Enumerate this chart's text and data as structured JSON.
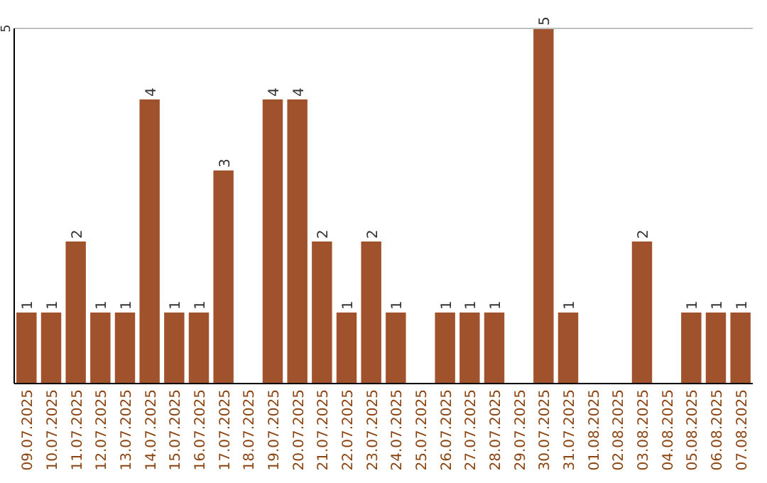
{
  "chart_data": {
    "type": "bar",
    "categories": [
      "09.07.2025",
      "10.07.2025",
      "11.07.2025",
      "12.07.2025",
      "13.07.2025",
      "14.07.2025",
      "15.07.2025",
      "16.07.2025",
      "17.07.2025",
      "18.07.2025",
      "19.07.2025",
      "20.07.2025",
      "21.07.2025",
      "22.07.2025",
      "23.07.2025",
      "24.07.2025",
      "25.07.2025",
      "26.07.2025",
      "27.07.2025",
      "28.07.2025",
      "29.07.2025",
      "30.07.2025",
      "31.07.2025",
      "01.08.2025",
      "02.08.2025",
      "03.08.2025",
      "04.08.2025",
      "05.08.2025",
      "06.08.2025",
      "07.08.2025"
    ],
    "values": [
      1,
      1,
      2,
      1,
      1,
      4,
      1,
      1,
      3,
      0,
      4,
      4,
      2,
      1,
      2,
      1,
      0,
      1,
      1,
      1,
      0,
      5,
      1,
      0,
      0,
      2,
      0,
      1,
      1,
      1
    ],
    "value_labels": [
      "1",
      "1",
      "2",
      "1",
      "1",
      "4",
      "1",
      "1",
      "3",
      null,
      "4",
      "4",
      "2",
      "1",
      "2",
      "1",
      null,
      "1",
      "1",
      "1",
      null,
      "5",
      "1",
      null,
      null,
      "2",
      null,
      "1",
      "1",
      "1"
    ],
    "color": "#a0522d",
    "ylim": [
      0,
      5
    ],
    "yticks": [
      5
    ],
    "ref_lines": [
      {
        "axis": "y",
        "value": 5,
        "color": "#c0c0c0"
      }
    ]
  }
}
